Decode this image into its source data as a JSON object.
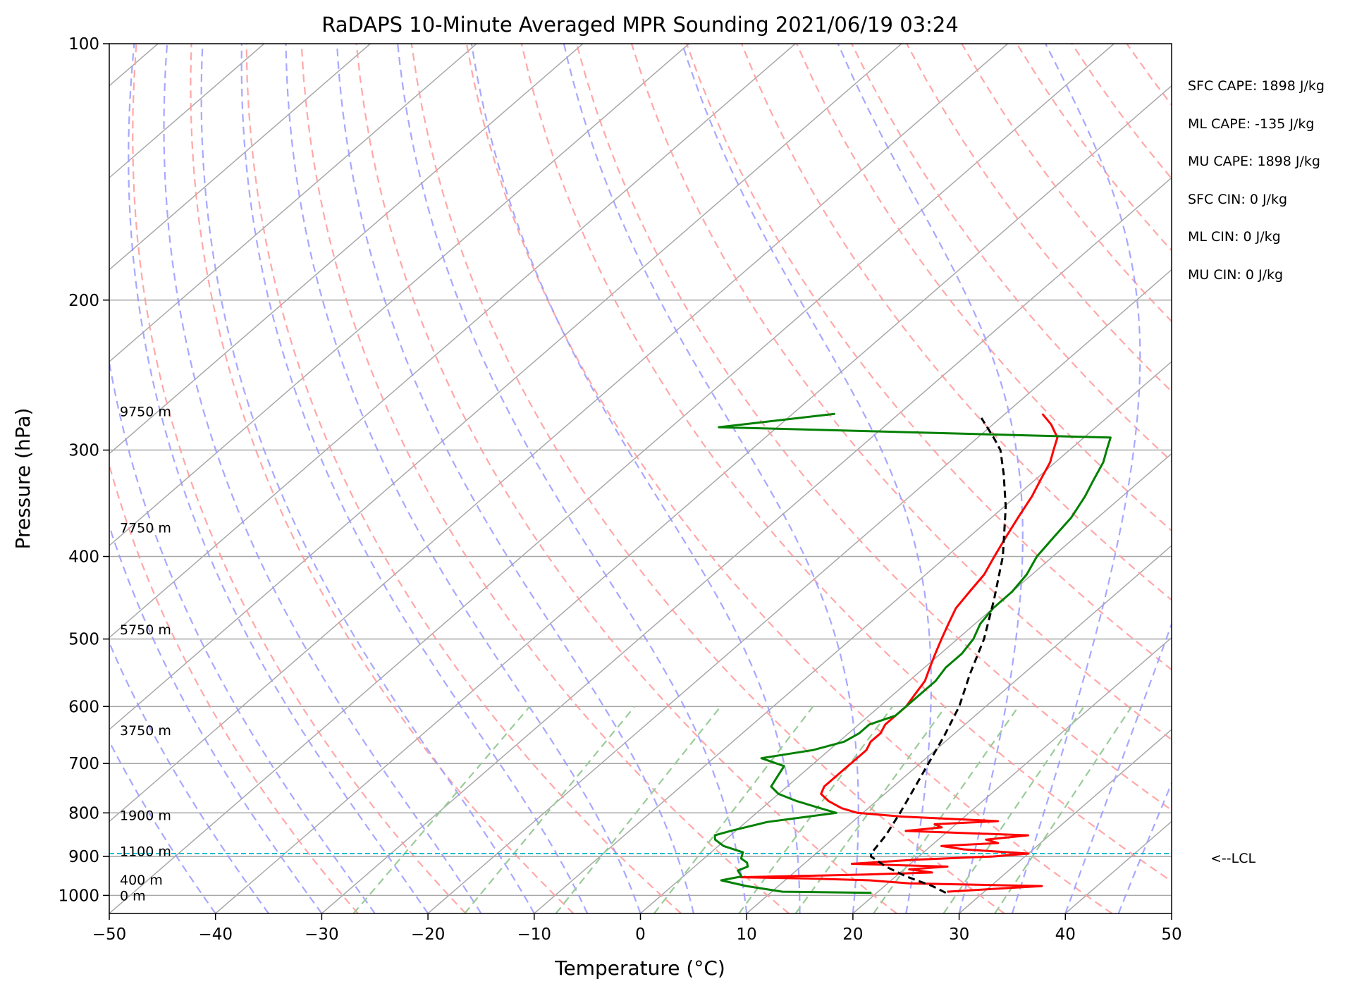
{
  "chart_data": {
    "type": "line",
    "title": "RaDAPS 10-Minute Averaged MPR Sounding 2021/06/19 03:24",
    "xlabel": "Temperature (°C)",
    "ylabel": "Pressure (hPa)",
    "xlim": [
      -50,
      50
    ],
    "ylim": [
      1050,
      100
    ],
    "y_scale": "log",
    "skew_t": true,
    "x_ticks": [
      -50,
      -40,
      -30,
      -20,
      -10,
      0,
      10,
      20,
      30,
      40,
      50
    ],
    "x_tick_labels": [
      "−50",
      "−40",
      "−30",
      "−20",
      "−10",
      "0",
      "10",
      "20",
      "30",
      "40",
      "50"
    ],
    "y_ticks": [
      100,
      200,
      300,
      400,
      500,
      600,
      700,
      800,
      900,
      1000
    ],
    "y_tick_labels": [
      "100",
      "200",
      "300",
      "400",
      "500",
      "600",
      "700",
      "800",
      "900",
      "1000"
    ],
    "grid": true,
    "series": [
      {
        "role": "temperature",
        "color": "#ff0000",
        "points": [
          [
            990,
            26.5
          ],
          [
            975,
            34.8
          ],
          [
            968,
            22
          ],
          [
            960,
            18
          ],
          [
            955,
            11.5
          ],
          [
            952,
            5.5
          ],
          [
            945,
            17
          ],
          [
            940,
            23
          ],
          [
            932,
            20.5
          ],
          [
            925,
            23.8
          ],
          [
            918,
            14.5
          ],
          [
            908,
            20
          ],
          [
            900,
            27
          ],
          [
            893,
            30
          ],
          [
            883,
            23.5
          ],
          [
            875,
            21
          ],
          [
            868,
            26
          ],
          [
            860,
            24.5
          ],
          [
            850,
            28
          ],
          [
            840,
            16
          ],
          [
            832,
            19
          ],
          [
            825,
            18
          ],
          [
            818,
            23.6
          ],
          [
            808,
            14
          ],
          [
            800,
            9.5
          ],
          [
            790,
            7.5
          ],
          [
            775,
            5.5
          ],
          [
            760,
            4
          ],
          [
            745,
            3.5
          ],
          [
            725,
            3.5
          ],
          [
            705,
            3.5
          ],
          [
            690,
            3.5
          ],
          [
            675,
            3.5
          ],
          [
            660,
            3
          ],
          [
            645,
            3
          ],
          [
            630,
            2.5
          ],
          [
            615,
            2.5
          ],
          [
            600,
            2.5
          ],
          [
            580,
            2
          ],
          [
            560,
            1.5
          ],
          [
            540,
            0.5
          ],
          [
            520,
            -0.5
          ],
          [
            500,
            -1.5
          ],
          [
            480,
            -2.5
          ],
          [
            460,
            -3.5
          ],
          [
            440,
            -4
          ],
          [
            420,
            -4.5
          ],
          [
            400,
            -5.5
          ],
          [
            380,
            -6.5
          ],
          [
            360,
            -7.5
          ],
          [
            340,
            -8.5
          ],
          [
            325,
            -9.5
          ],
          [
            310,
            -10.5
          ],
          [
            300,
            -11.5
          ],
          [
            290,
            -12.5
          ],
          [
            280,
            -14.5
          ],
          [
            272,
            -16.5
          ]
        ]
      },
      {
        "role": "dewpoint",
        "color": "#008000",
        "points": [
          [
            993,
            19.5
          ],
          [
            990,
            11
          ],
          [
            975,
            7
          ],
          [
            960,
            4
          ],
          [
            950,
            5.5
          ],
          [
            935,
            4.5
          ],
          [
            925,
            5
          ],
          [
            915,
            4.5
          ],
          [
            905,
            3.5
          ],
          [
            890,
            3
          ],
          [
            875,
            0.5
          ],
          [
            860,
            -1
          ],
          [
            850,
            -1.5
          ],
          [
            840,
            -0.5
          ],
          [
            820,
            2
          ],
          [
            800,
            7.5
          ],
          [
            790,
            5.5
          ],
          [
            775,
            2.5
          ],
          [
            760,
            0
          ],
          [
            745,
            -1.5
          ],
          [
            725,
            -2
          ],
          [
            705,
            -2.5
          ],
          [
            690,
            -5.5
          ],
          [
            675,
            -1.5
          ],
          [
            660,
            0.5
          ],
          [
            645,
            1
          ],
          [
            630,
            1
          ],
          [
            615,
            2.5
          ],
          [
            600,
            2.5
          ],
          [
            580,
            2.5
          ],
          [
            560,
            2.5
          ],
          [
            540,
            2
          ],
          [
            520,
            2
          ],
          [
            500,
            1.5
          ],
          [
            480,
            0.5
          ],
          [
            460,
            0
          ],
          [
            440,
            0
          ],
          [
            420,
            -0.5
          ],
          [
            400,
            -1.5
          ],
          [
            380,
            -2
          ],
          [
            360,
            -2.5
          ],
          [
            340,
            -3.5
          ],
          [
            325,
            -4.5
          ],
          [
            310,
            -5.5
          ],
          [
            300,
            -6.5
          ],
          [
            290,
            -7.5
          ],
          [
            282,
            -45.5
          ],
          [
            272,
            -36
          ]
        ]
      },
      {
        "role": "parcel",
        "color": "#000000",
        "points": [
          [
            993,
            26.5
          ],
          [
            975,
            24.5
          ],
          [
            950,
            21
          ],
          [
            925,
            18
          ],
          [
            900,
            15.5
          ],
          [
            893,
            15.2
          ],
          [
            850,
            14.6
          ],
          [
            800,
            13.5
          ],
          [
            750,
            12.2
          ],
          [
            700,
            10.8
          ],
          [
            650,
            9.3
          ],
          [
            600,
            7.5
          ],
          [
            550,
            5
          ],
          [
            500,
            2.5
          ],
          [
            450,
            -0.8
          ],
          [
            400,
            -4.7
          ],
          [
            350,
            -9.8
          ],
          [
            320,
            -13.6
          ],
          [
            300,
            -16.5
          ],
          [
            290,
            -18.5
          ],
          [
            275,
            -21.8
          ]
        ]
      }
    ],
    "lcl_pressure": 893,
    "lcl_label": "<--LCL",
    "height_labels": [
      {
        "text": "9750 m",
        "pressure": 270
      },
      {
        "text": "7750 m",
        "pressure": 370
      },
      {
        "text": "5750 m",
        "pressure": 487
      },
      {
        "text": "3750 m",
        "pressure": 640
      },
      {
        "text": "1900 m",
        "pressure": 805
      },
      {
        "text": "1100 m",
        "pressure": 887
      },
      {
        "text": "400 m",
        "pressure": 958
      },
      {
        "text": "0 m",
        "pressure": 1000
      }
    ],
    "annotations": [
      "SFC CAPE: 1898 J/kg",
      "ML CAPE: -135 J/kg",
      "MU CAPE: 1898 J/kg",
      "SFC CIN: 0 J/kg",
      "ML CIN: 0 J/kg",
      "MU CIN: 0 J/kg"
    ],
    "colors": {
      "isotherm": "#a8a8a8",
      "isobar": "#a8a8a8",
      "dry_adiabat": "#ff9999",
      "moist_adiabat": "#9999ff",
      "mixing_ratio": "#99cc99",
      "lcl_line": "#17becf"
    }
  }
}
